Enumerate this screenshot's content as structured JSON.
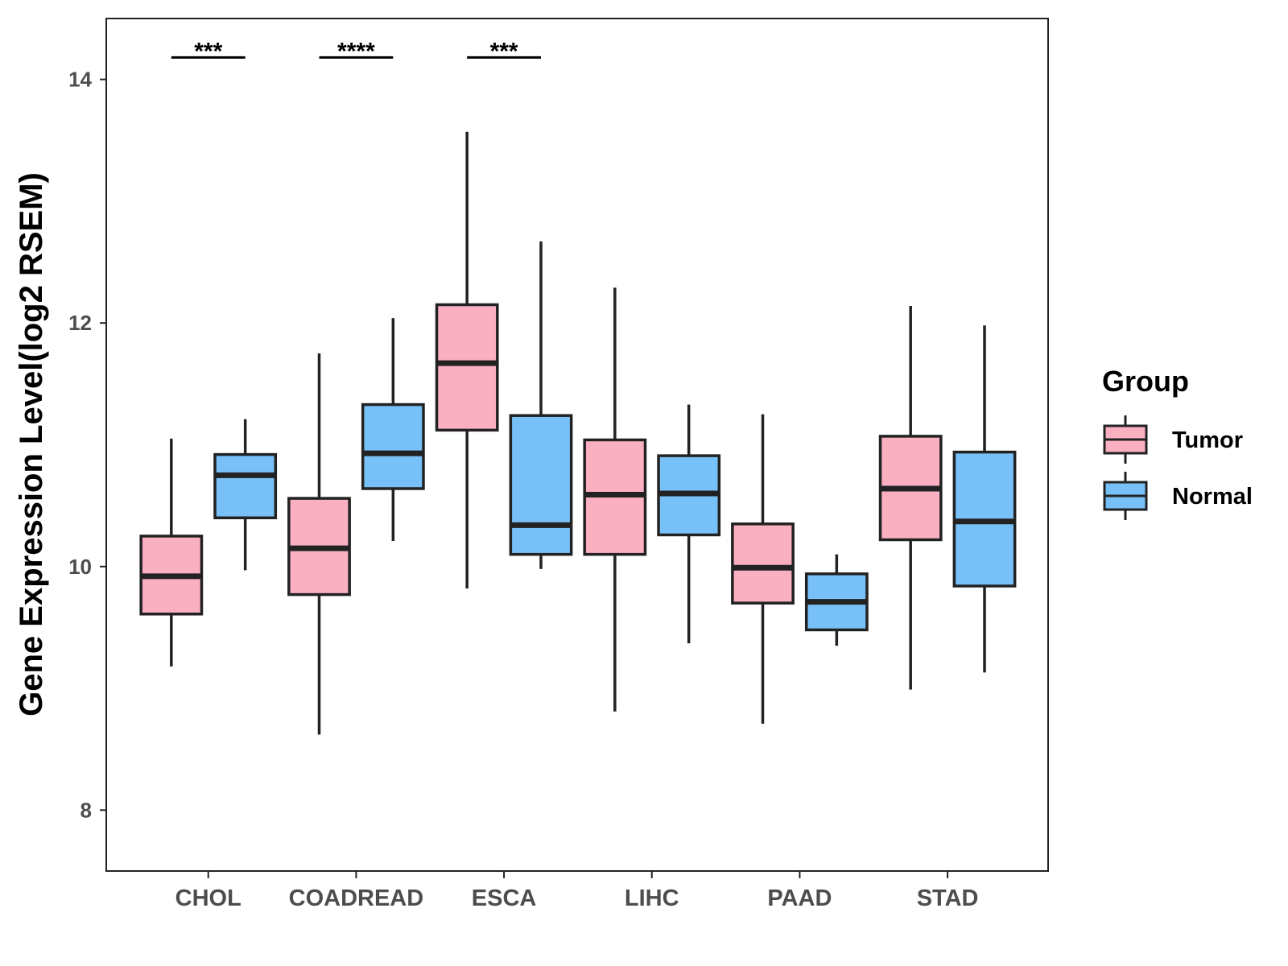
{
  "chart_data": {
    "type": "boxplot",
    "title": "",
    "xlabel": "",
    "ylabel": "Gene Expression Level(log2 RSEM)",
    "ylim": [
      7.5,
      14.5
    ],
    "yticks": [
      8,
      10,
      12,
      14
    ],
    "grid": false,
    "categories": [
      "CHOL",
      "COADREAD",
      "ESCA",
      "LIHC",
      "PAAD",
      "STAD"
    ],
    "legend": {
      "title": "Group",
      "position": "right",
      "entries": [
        "Tumor",
        "Normal"
      ]
    },
    "colors": {
      "Tumor": "#FBB0C1",
      "Normal": "#78C1F8",
      "outline": "#222222"
    },
    "series": [
      {
        "name": "Tumor",
        "boxes": [
          {
            "category": "CHOL",
            "min": 9.18,
            "q1": 9.61,
            "median": 9.92,
            "q3": 10.25,
            "max": 11.05
          },
          {
            "category": "COADREAD",
            "min": 8.62,
            "q1": 9.77,
            "median": 10.15,
            "q3": 10.56,
            "max": 11.75
          },
          {
            "category": "ESCA",
            "min": 9.82,
            "q1": 11.12,
            "median": 11.67,
            "q3": 12.15,
            "max": 13.57
          },
          {
            "category": "LIHC",
            "min": 8.81,
            "q1": 10.1,
            "median": 10.59,
            "q3": 11.04,
            "max": 12.29
          },
          {
            "category": "PAAD",
            "min": 8.71,
            "q1": 9.7,
            "median": 9.99,
            "q3": 10.35,
            "max": 11.25
          },
          {
            "category": "STAD",
            "min": 8.99,
            "q1": 10.22,
            "median": 10.64,
            "q3": 11.07,
            "max": 12.14
          }
        ]
      },
      {
        "name": "Normal",
        "boxes": [
          {
            "category": "CHOL",
            "min": 9.97,
            "q1": 10.4,
            "median": 10.75,
            "q3": 10.92,
            "max": 11.21
          },
          {
            "category": "COADREAD",
            "min": 10.21,
            "q1": 10.64,
            "median": 10.93,
            "q3": 11.33,
            "max": 12.04
          },
          {
            "category": "ESCA",
            "min": 9.98,
            "q1": 10.1,
            "median": 10.34,
            "q3": 11.24,
            "max": 12.67
          },
          {
            "category": "LIHC",
            "min": 9.37,
            "q1": 10.26,
            "median": 10.6,
            "q3": 10.91,
            "max": 11.33
          },
          {
            "category": "PAAD",
            "min": 9.35,
            "q1": 9.48,
            "median": 9.71,
            "q3": 9.94,
            "max": 10.1
          },
          {
            "category": "STAD",
            "min": 9.13,
            "q1": 9.84,
            "median": 10.37,
            "q3": 10.94,
            "max": 11.98
          }
        ]
      }
    ],
    "annotations": [
      {
        "category": "CHOL",
        "y": 14.18,
        "text": "***"
      },
      {
        "category": "COADREAD",
        "y": 14.18,
        "text": "****"
      },
      {
        "category": "ESCA",
        "y": 14.18,
        "text": "***"
      }
    ]
  }
}
